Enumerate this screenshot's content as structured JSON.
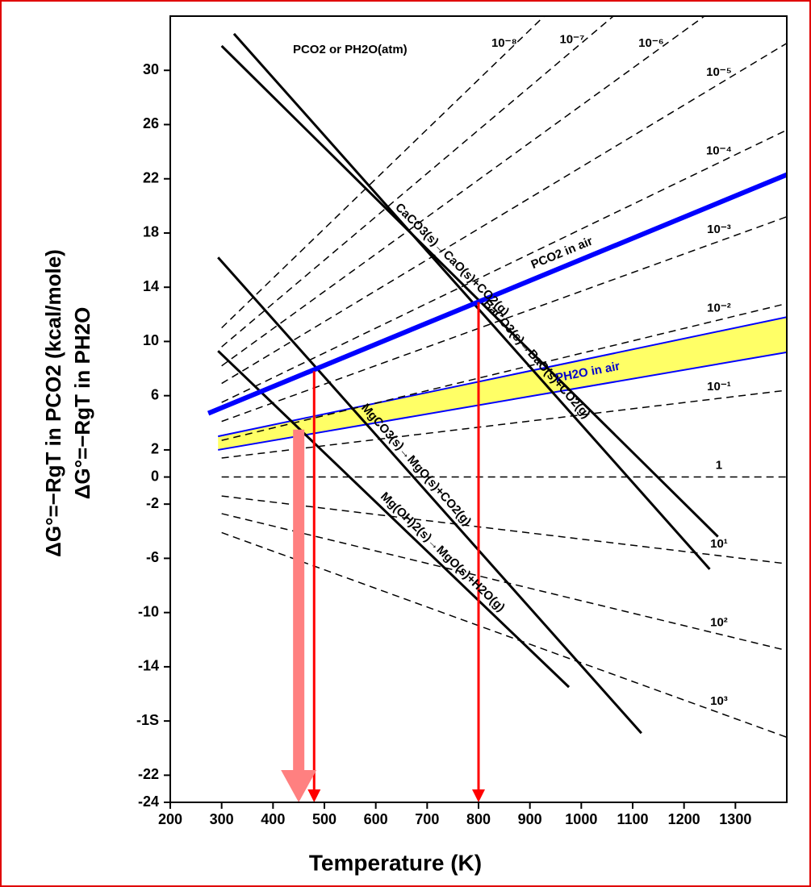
{
  "chart_data": {
    "type": "line",
    "x_label": "Temperature (K)",
    "y_label": [
      "ΔG°=−RgT in PCO2 (kcal/mole)",
      "ΔG°=−RgT in PH2O"
    ],
    "isobar_title": "PCO2 or PH2O(atm)",
    "xlim": [
      200,
      1400
    ],
    "xticks": [
      200,
      300,
      400,
      500,
      600,
      700,
      800,
      900,
      1000,
      1100,
      1200,
      1300
    ],
    "ylim": [
      -24,
      34
    ],
    "yticks": [
      30,
      26,
      22,
      18,
      14,
      10,
      6,
      2,
      0,
      -2,
      -6,
      -10,
      -14,
      {
        "value": -18,
        "label": "-1S"
      },
      -22,
      -24
    ],
    "series": [
      {
        "name": "10⁻⁸",
        "style": "dashed",
        "color": "#000000",
        "x": [
          300,
          1400
        ],
        "values": [
          11.0,
          51.3
        ]
      },
      {
        "name": "10⁻⁷",
        "style": "dashed",
        "color": "#000000",
        "x": [
          300,
          1400
        ],
        "values": [
          9.6,
          44.8
        ]
      },
      {
        "name": "10⁻⁶",
        "style": "dashed",
        "color": "#000000",
        "x": [
          300,
          1400
        ],
        "values": [
          8.2,
          38.4
        ]
      },
      {
        "name": "10⁻⁵",
        "style": "dashed",
        "color": "#000000",
        "x": [
          300,
          1400
        ],
        "values": [
          6.9,
          32.0
        ]
      },
      {
        "name": "10⁻⁴",
        "style": "dashed",
        "color": "#000000",
        "x": [
          300,
          1400
        ],
        "values": [
          5.5,
          25.6
        ]
      },
      {
        "name": "10⁻³",
        "style": "dashed",
        "color": "#000000",
        "x": [
          300,
          1400
        ],
        "values": [
          4.1,
          19.2
        ]
      },
      {
        "name": "10⁻²",
        "style": "dashed",
        "color": "#000000",
        "x": [
          300,
          1400
        ],
        "values": [
          2.7,
          12.8
        ]
      },
      {
        "name": "10⁻¹",
        "style": "dashed",
        "color": "#000000",
        "x": [
          300,
          1400
        ],
        "values": [
          1.4,
          6.4
        ]
      },
      {
        "name": "1",
        "style": "dashed",
        "color": "#000000",
        "x": [
          300,
          1400
        ],
        "values": [
          0,
          0
        ]
      },
      {
        "name": "10¹",
        "style": "dashed",
        "color": "#000000",
        "x": [
          300,
          1400
        ],
        "values": [
          -1.4,
          -6.4
        ]
      },
      {
        "name": "10²",
        "style": "dashed",
        "color": "#000000",
        "x": [
          300,
          1400
        ],
        "values": [
          -2.7,
          -12.8
        ]
      },
      {
        "name": "10³",
        "style": "dashed",
        "color": "#000000",
        "x": [
          300,
          1400
        ],
        "values": [
          -4.1,
          -19.2
        ]
      },
      {
        "name": "CaCO3(s)→CaO(s)+CO2(g)",
        "style": "solid",
        "color": "#000000",
        "x": [
          300,
          1266
        ],
        "values": [
          31.8,
          -4.4
        ]
      },
      {
        "name": "BaCO3(s)→BaO(s)+CO2(g)",
        "style": "solid",
        "color": "#000000",
        "x": [
          324,
          1250
        ],
        "values": [
          32.7,
          -6.8
        ]
      },
      {
        "name": "MgCO3(s)→MgO(s)+CO2(g)",
        "style": "solid",
        "color": "#000000",
        "x": [
          293,
          1117
        ],
        "values": [
          16.2,
          -18.9
        ]
      },
      {
        "name": "Mg(OH)2(s)→MgO(s)+H2O(g)",
        "style": "solid",
        "color": "#000000",
        "x": [
          293,
          976
        ],
        "values": [
          9.3,
          -15.5
        ]
      },
      {
        "name": "PCO2 in air",
        "style": "thick",
        "color": "#0000ff",
        "x": [
          274,
          1400
        ],
        "values": [
          4.7,
          22.3
        ]
      }
    ],
    "band": {
      "name": "PH2O in air",
      "color": "#ffff66",
      "edge_color": "#0000ff",
      "x": [
        293,
        1400
      ],
      "upper": [
        3.0,
        11.8
      ],
      "lower": [
        2.0,
        9.2
      ]
    },
    "arrows": [
      {
        "x": 480,
        "from": 7.8,
        "to": -24,
        "color": "#ff0000"
      },
      {
        "x": 800,
        "from": 12.9,
        "to": -24,
        "color": "#ff0000"
      },
      {
        "x": 450,
        "from": 3.5,
        "to": -24,
        "color": "#ff8080"
      }
    ]
  }
}
